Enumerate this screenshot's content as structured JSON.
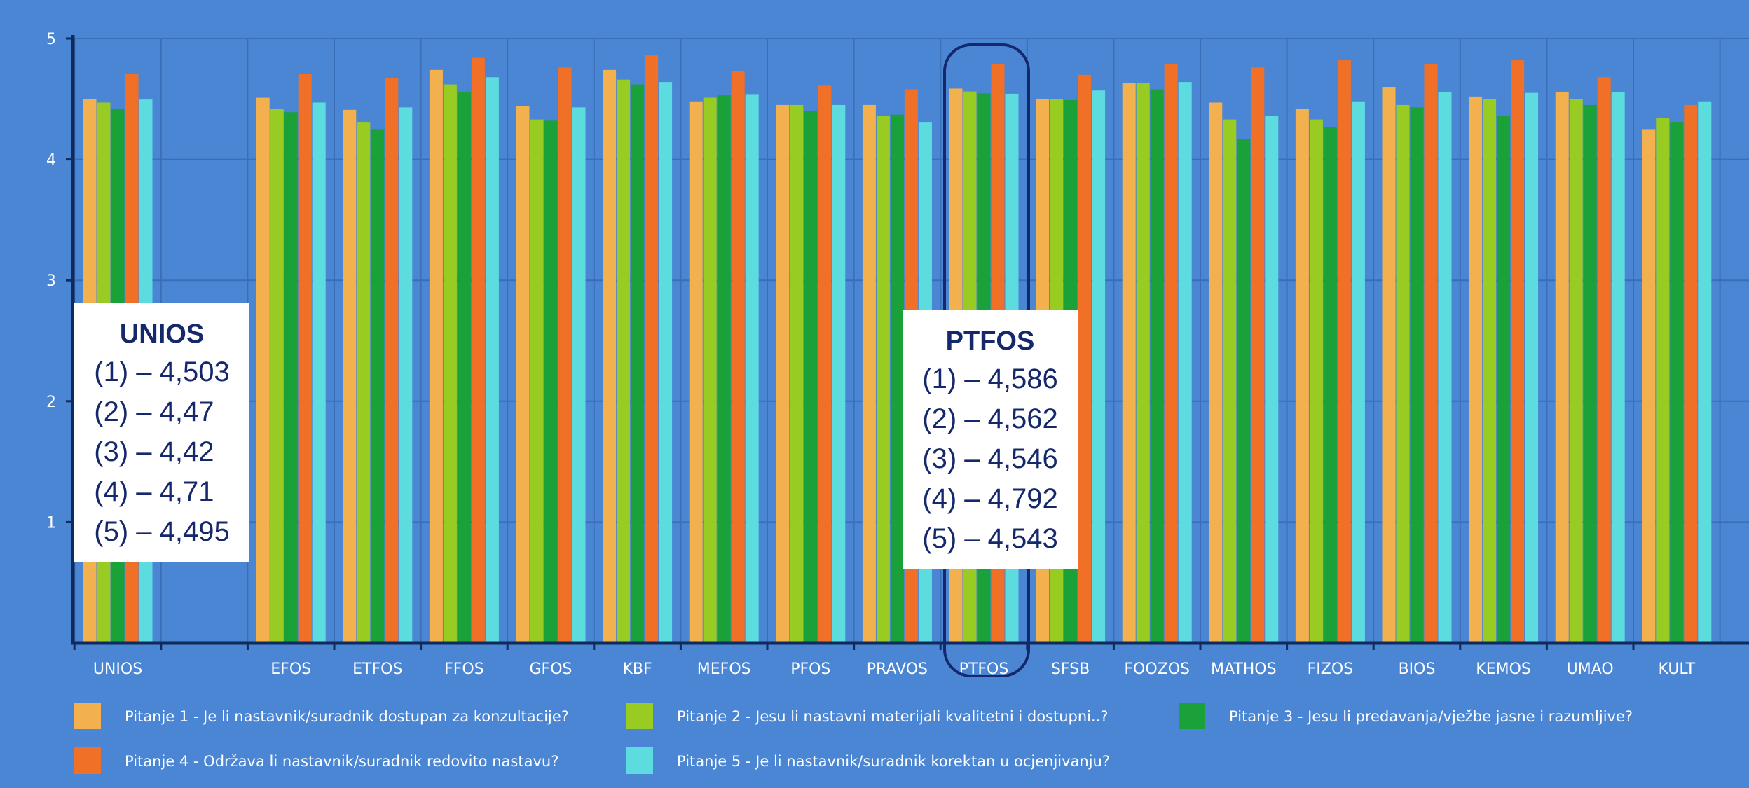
{
  "chart_data": {
    "type": "bar",
    "categories": [
      "UNIOS",
      "",
      "EFOS",
      "ETFOS",
      "FFOS",
      "GFOS",
      "KBF",
      "MEFOS",
      "PFOS",
      "PRAVOS",
      "PTFOS",
      "SFSB",
      "FOOZOS",
      "MATHOS",
      "FIZOS",
      "BIOS",
      "KEMOS",
      "UMAO",
      "KULT"
    ],
    "y_ticks": [
      "1",
      "2",
      "3",
      "4",
      "5"
    ],
    "ylim": [
      0,
      5
    ],
    "grid": true,
    "legend_position": "bottom",
    "series": [
      {
        "name": "Pitanje 1 - Je li nastavnik/suradnik dostupan za konzultacije?",
        "color": "#f2b04e",
        "values": [
          4.5,
          null,
          4.51,
          4.41,
          4.74,
          4.44,
          4.74,
          4.48,
          4.45,
          4.45,
          4.586,
          4.5,
          4.63,
          4.47,
          4.42,
          4.6,
          4.52,
          4.56,
          4.25
        ]
      },
      {
        "name": "Pitanje 2 - Jesu li nastavni materijali kvalitetni i dostupni..?",
        "color": "#99cc22",
        "values": [
          4.47,
          null,
          4.42,
          4.31,
          4.62,
          4.33,
          4.66,
          4.51,
          4.45,
          4.36,
          4.562,
          4.5,
          4.63,
          4.33,
          4.33,
          4.45,
          4.5,
          4.5,
          4.34
        ]
      },
      {
        "name": "Pitanje 3 - Jesu li predavanja/vježbe jasne i razumljive?",
        "color": "#1aa13a",
        "values": [
          4.42,
          null,
          4.39,
          4.25,
          4.56,
          4.32,
          4.62,
          4.53,
          4.4,
          4.37,
          4.546,
          4.49,
          4.58,
          4.17,
          4.27,
          4.43,
          4.36,
          4.45,
          4.31
        ]
      },
      {
        "name": "Pitanje 4 - Održava li nastavnik/suradnik redovito nastavu?",
        "color": "#f07028",
        "values": [
          4.71,
          null,
          4.71,
          4.67,
          4.84,
          4.76,
          4.86,
          4.73,
          4.61,
          4.58,
          4.792,
          4.7,
          4.79,
          4.76,
          4.82,
          4.79,
          4.82,
          4.68,
          4.45
        ]
      },
      {
        "name": "Pitanje 5 - Je li nastavnik/suradnik korektan u ocjenjivanju?",
        "color": "#5ddcdf",
        "values": [
          4.495,
          null,
          4.47,
          4.43,
          4.68,
          4.43,
          4.64,
          4.54,
          4.45,
          4.31,
          4.543,
          4.57,
          4.64,
          4.36,
          4.48,
          4.56,
          4.55,
          4.56,
          4.48
        ]
      }
    ]
  },
  "callouts": {
    "unios": {
      "title": "UNIOS",
      "lines": [
        "(1) – 4,503",
        "(2) – 4,47",
        "(3) – 4,42",
        "(4) – 4,71",
        "(5) – 4,495"
      ]
    },
    "ptfos": {
      "title": "PTFOS",
      "lines": [
        "(1) – 4,586",
        "(2) – 4,562",
        "(3) – 4,546",
        "(4) – 4,792",
        "(5) – 4,543"
      ]
    }
  },
  "colors": {
    "background": "#4a86d3",
    "gridline": "#3a6fb8",
    "axis": "#102a5c",
    "callout_text": "#14286b"
  }
}
